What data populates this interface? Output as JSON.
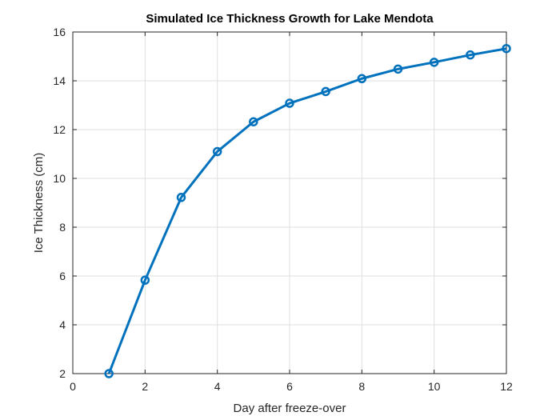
{
  "chart_data": {
    "type": "line",
    "title": "Simulated Ice Thickness Growth for Lake Mendota",
    "xlabel": "Day after freeze-over",
    "ylabel": "Ice Thickness (cm)",
    "xlim": [
      0,
      12
    ],
    "ylim": [
      2,
      16
    ],
    "xticks": [
      0,
      2,
      4,
      6,
      8,
      10,
      12
    ],
    "yticks": [
      2,
      4,
      6,
      8,
      10,
      12,
      14,
      16
    ],
    "grid": true,
    "marker": "circle",
    "series": [
      {
        "color": "#0072BD",
        "x": [
          1,
          2,
          3,
          4,
          5,
          6,
          7,
          8,
          9,
          10,
          11,
          12
        ],
        "y": [
          2.0,
          5.83,
          9.22,
          11.1,
          12.32,
          13.08,
          13.56,
          14.09,
          14.48,
          14.76,
          15.06,
          15.32
        ]
      }
    ]
  }
}
